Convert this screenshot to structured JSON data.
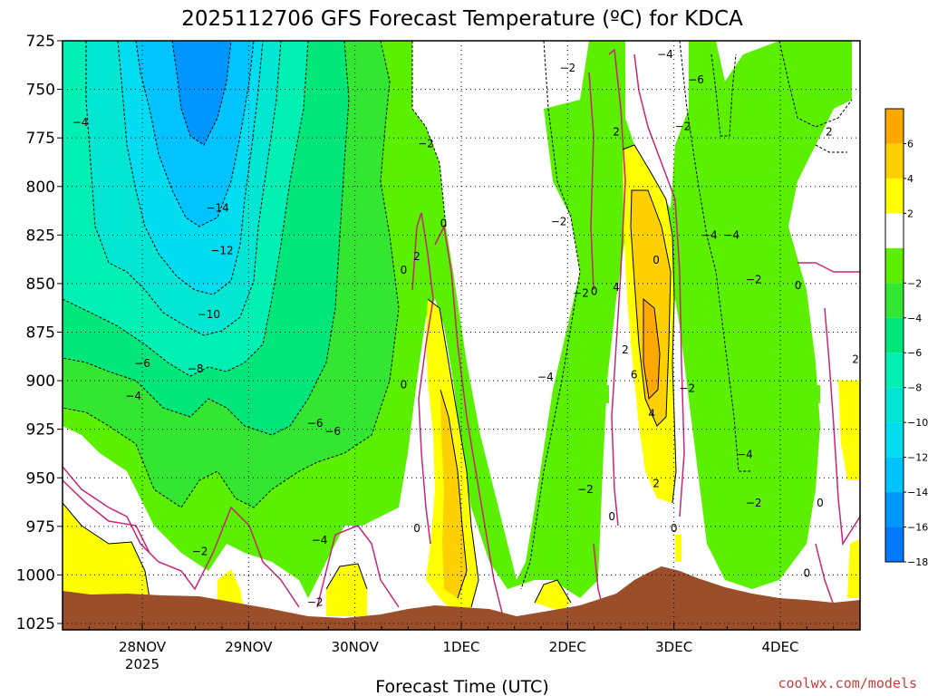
{
  "chart_data": {
    "type": "heatmap",
    "title": "2025112706 GFS Forecast Temperature (ºC) for KDCA",
    "xlabel": "Forecast Time (UTC)",
    "ylabel": "",
    "y_axis": {
      "ticks": [
        725,
        750,
        775,
        800,
        825,
        850,
        875,
        900,
        925,
        950,
        975,
        1000,
        1025
      ],
      "range": [
        725,
        1025
      ],
      "inverted": true
    },
    "x_axis": {
      "tick_labels": [
        {
          "label": "28NOV",
          "sublabel": "2025",
          "hour": 24
        },
        {
          "label": "29NOV",
          "sublabel": "",
          "hour": 48
        },
        {
          "label": "30NOV",
          "sublabel": "",
          "hour": 72
        },
        {
          "label": "1DEC",
          "sublabel": "",
          "hour": 96
        },
        {
          "label": "2DEC",
          "sublabel": "",
          "hour": 120
        },
        {
          "label": "3DEC",
          "sublabel": "",
          "hour": 144
        },
        {
          "label": "4DEC",
          "sublabel": "",
          "hour": 168
        }
      ],
      "range": [
        6,
        186
      ]
    },
    "grid": true,
    "colorbar": {
      "placement": "right",
      "levels": [
        {
          "value": "6",
          "color": "#ffa800"
        },
        {
          "value": "4",
          "color": "#ffd000"
        },
        {
          "value": "2",
          "color": "#ffff00"
        },
        {
          "value": "",
          "color": "#ffffff"
        },
        {
          "value": "-2",
          "color": "#5af000"
        },
        {
          "value": "-4",
          "color": "#32e632"
        },
        {
          "value": "-6",
          "color": "#00e678"
        },
        {
          "value": "-8",
          "color": "#00f0b4"
        },
        {
          "value": "-10",
          "color": "#00e6d2"
        },
        {
          "value": "-12",
          "color": "#00dcf0"
        },
        {
          "value": "-14",
          "color": "#00c3ff"
        },
        {
          "value": "-16",
          "color": "#0096ff"
        },
        {
          "value": "-18",
          "color": "#0078ff"
        }
      ],
      "tick_labels": [
        "6",
        "4",
        "2",
        "−2",
        "−4",
        "−6",
        "−8",
        "−10",
        "−12",
        "−14",
        "−16",
        "−18"
      ]
    },
    "contour_labels": [
      {
        "text": "-4",
        "hour": 10,
        "p": 767
      },
      {
        "text": "-14",
        "hour": 41,
        "p": 811
      },
      {
        "text": "-12",
        "hour": 42,
        "p": 833
      },
      {
        "text": "-10",
        "hour": 39,
        "p": 866
      },
      {
        "text": "-8",
        "hour": 36,
        "p": 894
      },
      {
        "text": "-6",
        "hour": 24,
        "p": 891
      },
      {
        "text": "-4",
        "hour": 22,
        "p": 908
      },
      {
        "text": "-6",
        "hour": 63,
        "p": 922
      },
      {
        "text": "-6",
        "hour": 67,
        "p": 926
      },
      {
        "text": "-4",
        "hour": 64,
        "p": 982
      },
      {
        "text": "-2",
        "hour": 37,
        "p": 988
      },
      {
        "text": "-2",
        "hour": 63,
        "p": 1014
      },
      {
        "text": "-2",
        "hour": 88,
        "p": 778
      },
      {
        "text": "0",
        "hour": 92,
        "p": 819
      },
      {
        "text": "0",
        "hour": 83,
        "p": 843
      },
      {
        "text": "2",
        "hour": 86,
        "p": 836
      },
      {
        "text": "0",
        "hour": 83,
        "p": 902
      },
      {
        "text": "0",
        "hour": 86,
        "p": 976
      },
      {
        "text": "-2",
        "hour": 120,
        "p": 739
      },
      {
        "text": "-2",
        "hour": 118,
        "p": 818
      },
      {
        "text": "-2",
        "hour": 123,
        "p": 855
      },
      {
        "text": "0",
        "hour": 126,
        "p": 854
      },
      {
        "text": "-4",
        "hour": 115,
        "p": 898
      },
      {
        "text": "-2",
        "hour": 124,
        "p": 956
      },
      {
        "text": "2",
        "hour": 131,
        "p": 772
      },
      {
        "text": "4",
        "hour": 131,
        "p": 852
      },
      {
        "text": "0",
        "hour": 140,
        "p": 838
      },
      {
        "text": "2",
        "hour": 133,
        "p": 884
      },
      {
        "text": "6",
        "hour": 135,
        "p": 897
      },
      {
        "text": "4",
        "hour": 139,
        "p": 917
      },
      {
        "text": "2",
        "hour": 140,
        "p": 953
      },
      {
        "text": "0",
        "hour": 130,
        "p": 970
      },
      {
        "text": "0",
        "hour": 144,
        "p": 976
      },
      {
        "text": "-2",
        "hour": 147,
        "p": 904
      },
      {
        "text": "-2",
        "hour": 146,
        "p": 769
      },
      {
        "text": "-4",
        "hour": 142,
        "p": 732
      },
      {
        "text": "-6",
        "hour": 149,
        "p": 745
      },
      {
        "text": "-4",
        "hour": 152,
        "p": 825
      },
      {
        "text": "-4",
        "hour": 157,
        "p": 825
      },
      {
        "text": "-2",
        "hour": 162,
        "p": 848
      },
      {
        "text": "0",
        "hour": 172,
        "p": 851
      },
      {
        "text": "-4",
        "hour": 160,
        "p": 938
      },
      {
        "text": "-2",
        "hour": 162,
        "p": 963
      },
      {
        "text": "0",
        "hour": 177,
        "p": 963
      },
      {
        "text": "0",
        "hour": 174,
        "p": 999
      },
      {
        "text": "2",
        "hour": 179,
        "p": 772
      },
      {
        "text": "2",
        "hour": 185,
        "p": 889
      }
    ]
  },
  "credit": "coolwx.com/models"
}
